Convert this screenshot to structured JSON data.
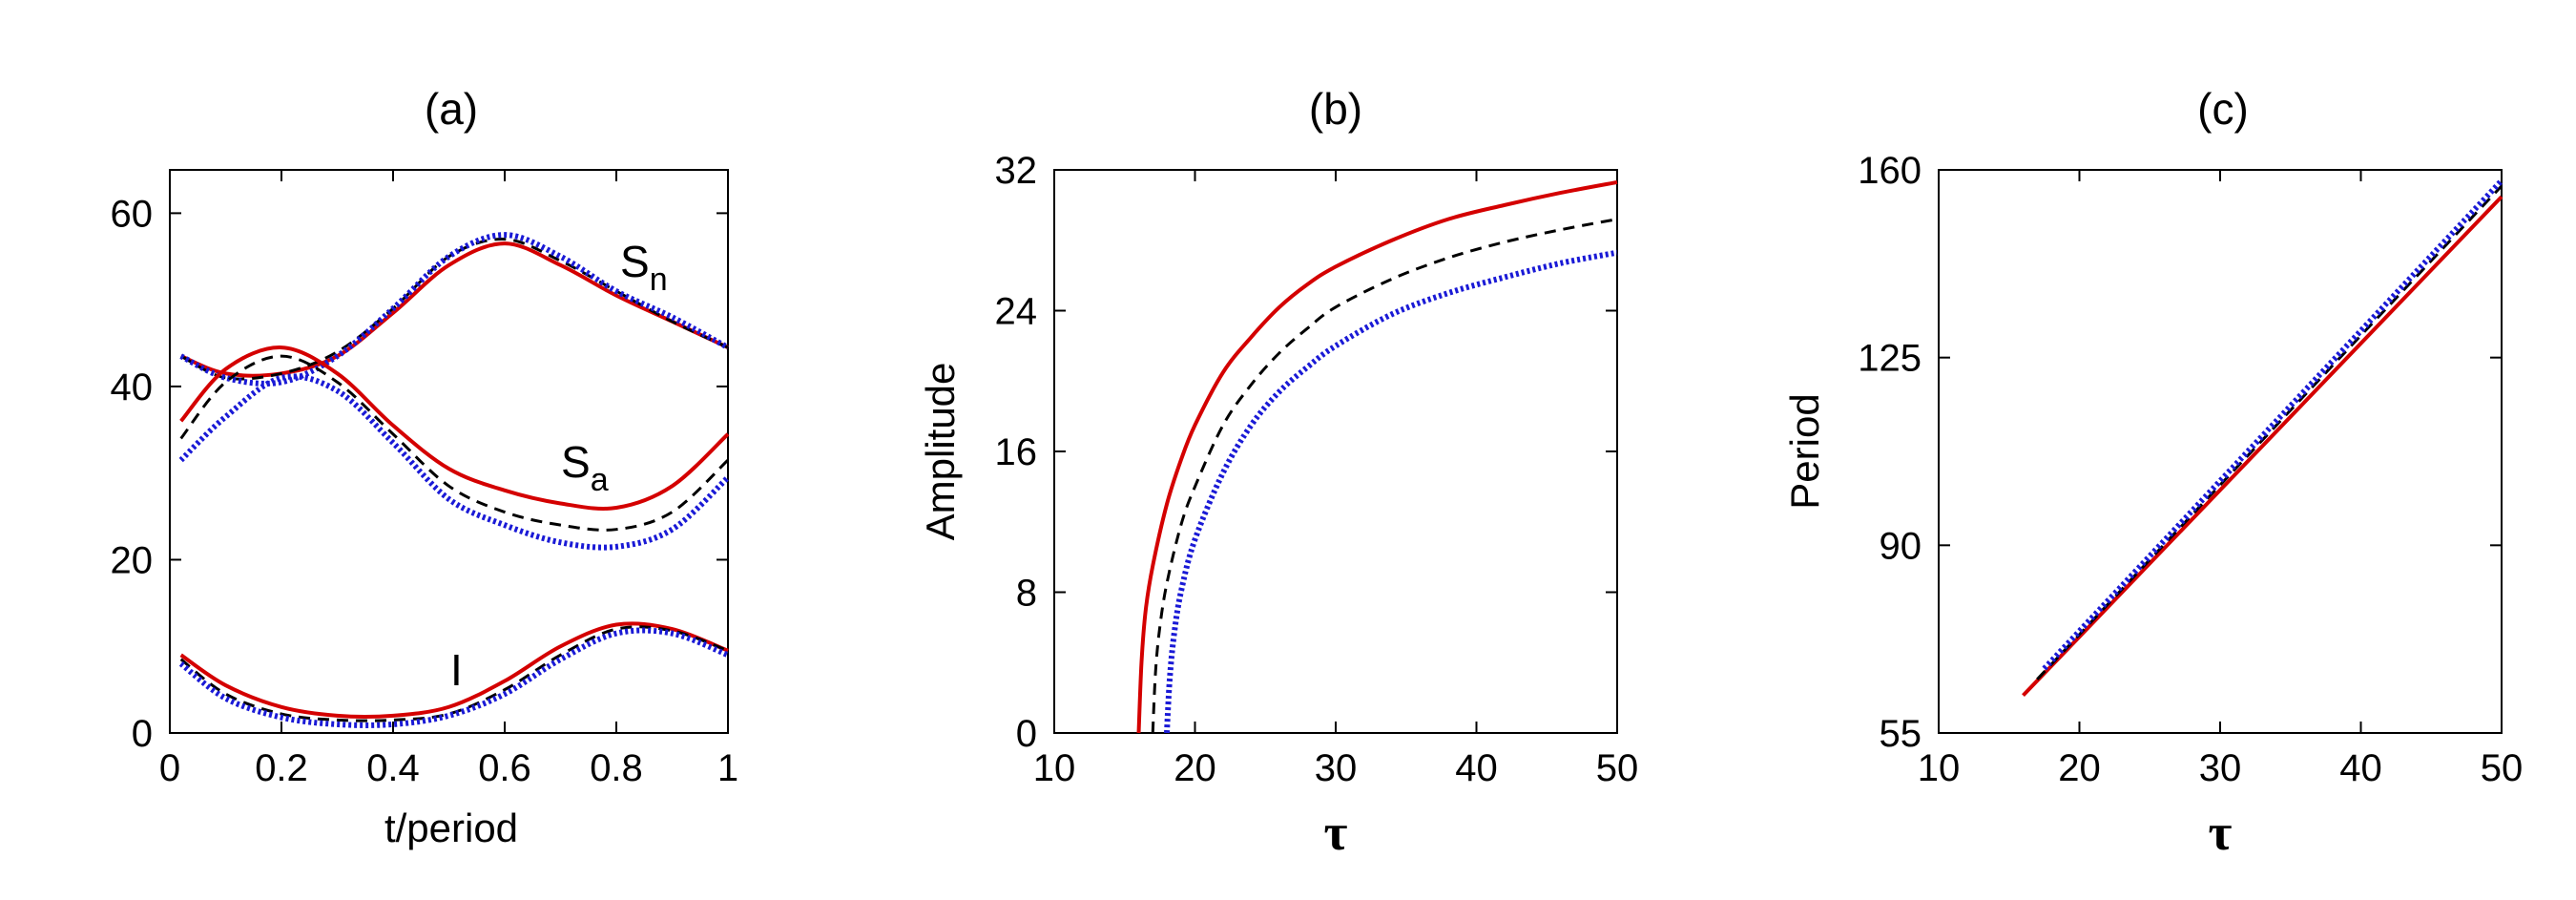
{
  "colors": {
    "red": "#d40000",
    "black_dashed": "#000000",
    "blue_dotted": "#1a1ad6"
  },
  "chart_data": [
    {
      "type": "line",
      "title": "(a)",
      "xlabel": "t/period",
      "ylabel": "",
      "xlim": [
        0,
        1
      ],
      "ylim": [
        0,
        65
      ],
      "xticks": [
        "0",
        "0.2",
        "0.4",
        "0.6",
        "0.8",
        "1"
      ],
      "yticks": [
        "0",
        "20",
        "40",
        "60"
      ],
      "grid": false,
      "annotations": [
        {
          "text": "S",
          "sub": "n"
        },
        {
          "text": "S",
          "sub": "a"
        },
        {
          "text": "I",
          "sub": ""
        }
      ],
      "x": [
        0.02,
        0.1,
        0.2,
        0.3,
        0.4,
        0.5,
        0.6,
        0.7,
        0.8,
        0.9,
        1.0
      ],
      "series": [
        {
          "color": "red",
          "style": "solid",
          "group": "Sn",
          "values": [
            43.5,
            41.5,
            41.5,
            43.5,
            48.5,
            54,
            56.5,
            54,
            50.5,
            47.5,
            44.5
          ]
        },
        {
          "color": "black",
          "style": "dashed",
          "group": "Sn",
          "values": [
            43.5,
            41,
            41.5,
            44,
            49,
            55,
            57,
            54.5,
            51,
            47.5,
            44.5
          ]
        },
        {
          "color": "blue",
          "style": "dotted",
          "group": "Sn",
          "values": [
            43.5,
            41,
            40.5,
            43.5,
            49,
            55,
            57.5,
            55,
            51,
            48,
            44.5
          ]
        },
        {
          "color": "red",
          "style": "solid",
          "group": "Sa",
          "values": [
            36,
            42,
            44.5,
            41.5,
            35.5,
            30.5,
            28,
            26.5,
            26,
            28.5,
            34.5
          ]
        },
        {
          "color": "black",
          "style": "dashed",
          "group": "Sa",
          "values": [
            34,
            40.5,
            43.5,
            40.5,
            34.5,
            28.5,
            25.5,
            24,
            23.5,
            25.5,
            31.5
          ]
        },
        {
          "color": "blue",
          "style": "dotted",
          "group": "Sa",
          "values": [
            31.5,
            36.5,
            41,
            39.5,
            33.5,
            27,
            24,
            22,
            21.5,
            23.5,
            29.5
          ]
        },
        {
          "color": "red",
          "style": "solid",
          "group": "I",
          "values": [
            9,
            5.5,
            3,
            2,
            2,
            3,
            6,
            10,
            12.5,
            12,
            9.5
          ]
        },
        {
          "color": "black",
          "style": "dashed",
          "group": "I",
          "values": [
            8.5,
            4.5,
            2.2,
            1.5,
            1.5,
            2.2,
            5,
            9,
            12,
            11.8,
            9.5
          ]
        },
        {
          "color": "blue",
          "style": "dotted",
          "group": "I",
          "values": [
            8,
            4,
            1.8,
            1,
            1,
            2,
            4.5,
            8.5,
            11.5,
            11.5,
            9
          ]
        }
      ]
    },
    {
      "type": "line",
      "title": "(b)",
      "xlabel": "τ",
      "ylabel": "Amplitude",
      "xlim": [
        10,
        50
      ],
      "ylim": [
        0,
        32
      ],
      "xticks": [
        "10",
        "20",
        "30",
        "40",
        "50"
      ],
      "yticks": [
        "0",
        "8",
        "16",
        "24",
        "32"
      ],
      "grid": false,
      "series": [
        {
          "color": "red",
          "style": "solid",
          "x": [
            16,
            16.2,
            16.5,
            17,
            18,
            19,
            20,
            22,
            24,
            26,
            28,
            30,
            34,
            38,
            42,
            46,
            50
          ],
          "values": [
            0,
            4,
            7,
            9.5,
            13,
            15.5,
            17.5,
            20.5,
            22.5,
            24.2,
            25.5,
            26.5,
            28,
            29.2,
            30,
            30.7,
            31.3
          ]
        },
        {
          "color": "black",
          "style": "dashed",
          "x": [
            17,
            17.2,
            17.5,
            18,
            19,
            20,
            22,
            24,
            26,
            28,
            30,
            34,
            38,
            42,
            46,
            50
          ],
          "values": [
            0,
            3.5,
            6,
            8.5,
            11.8,
            14,
            17.5,
            19.8,
            21.6,
            23,
            24.2,
            25.8,
            27,
            27.9,
            28.6,
            29.2
          ]
        },
        {
          "color": "blue",
          "style": "dotted",
          "x": [
            18,
            18.2,
            18.5,
            19,
            20,
            22,
            24,
            26,
            28,
            30,
            34,
            38,
            42,
            46,
            50
          ],
          "values": [
            0,
            3,
            5.5,
            8,
            11,
            14.8,
            17.5,
            19.4,
            20.8,
            22,
            23.8,
            25,
            25.9,
            26.7,
            27.3
          ]
        }
      ]
    },
    {
      "type": "line",
      "title": "(c)",
      "xlabel": "τ",
      "ylabel": "Period",
      "xlim": [
        10,
        50
      ],
      "ylim": [
        55,
        160
      ],
      "xticks": [
        "10",
        "20",
        "30",
        "40",
        "50"
      ],
      "yticks": [
        "55",
        "90",
        "125",
        "160"
      ],
      "grid": false,
      "series": [
        {
          "color": "red",
          "style": "solid",
          "x": [
            16,
            50
          ],
          "values": [
            62,
            155
          ]
        },
        {
          "color": "black",
          "style": "dashed",
          "x": [
            17,
            50
          ],
          "values": [
            65,
            157
          ]
        },
        {
          "color": "blue",
          "style": "dotted",
          "x": [
            17.5,
            50
          ],
          "values": [
            67,
            158
          ]
        }
      ]
    }
  ]
}
